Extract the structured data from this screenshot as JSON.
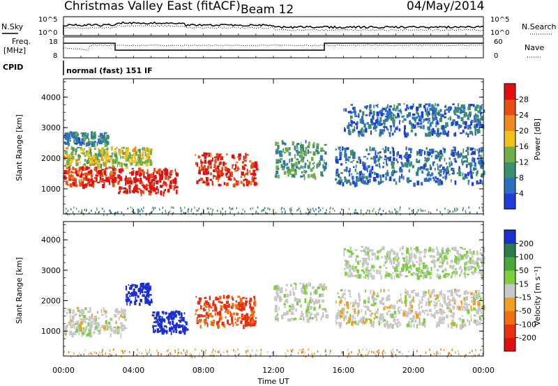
{
  "header": {
    "title": "Christmas Valley East (fitACF)",
    "beam": "Beam 12",
    "date": "04/May/2014"
  },
  "strips": {
    "nsky_label": "N.Sky",
    "nsearch_label": "N.Search",
    "nsky_ticks": [
      "10^5",
      "10^0"
    ],
    "nsearch_ticks": [
      "10^5",
      "10^0"
    ],
    "freq_label_1": "Freq.",
    "freq_label_2": "[MHz]",
    "freq_ticks": [
      "18",
      "8"
    ],
    "nave_label": "Nave",
    "nave_ticks": [
      "60",
      "0"
    ],
    "cpid_label": "CPID",
    "cpid_text": "normal (fast) 151 IF"
  },
  "axes": {
    "xlabel": "Time UT",
    "ylabel_top": "Slant Range [km]",
    "ylabel_bottom": "Slant Range [km]",
    "x_ticks": [
      "00:00",
      "04:00",
      "08:00",
      "12:00",
      "16:00",
      "20:00",
      "00:00"
    ],
    "y_ticks": [
      "1000",
      "2000",
      "3000",
      "4000"
    ]
  },
  "power_scale": {
    "label": "Power [dB]",
    "ticks": [
      "4",
      "8",
      "12",
      "16",
      "20",
      "24",
      "28"
    ],
    "colors": [
      "#1f3bd8",
      "#2f6fc0",
      "#3c8f6e",
      "#6fb04a",
      "#f2c21b",
      "#f08a1a",
      "#e84d14",
      "#e01010"
    ]
  },
  "velocity_scale": {
    "label": "Velocity [m s⁻¹]",
    "ticks": [
      "200",
      "100",
      "50",
      "15",
      "-15",
      "-50",
      "-100",
      "-200"
    ],
    "colors": [
      "#1a2fd0",
      "#2e7a4a",
      "#49a83c",
      "#7cd040",
      "#c8c8c8",
      "#f0a020",
      "#f07010",
      "#e83010",
      "#e01010"
    ]
  },
  "chart_data": [
    {
      "type": "heatmap",
      "title": "Power",
      "xlabel": "Time UT",
      "ylabel": "Slant Range [km]",
      "xlim": [
        0,
        24
      ],
      "ylim": [
        180,
        4600
      ],
      "colorbar_range": [
        0,
        30
      ],
      "bands": [
        {
          "t0": 0.0,
          "t1": 3.0,
          "r0": 1150,
          "r1": 1750,
          "level": 27
        },
        {
          "t0": 0.0,
          "t1": 5.0,
          "r0": 1800,
          "r1": 2400,
          "level": 15
        },
        {
          "t0": 0.0,
          "t1": 2.5,
          "r0": 2500,
          "r1": 2900,
          "level": 8
        },
        {
          "t0": 3.0,
          "t1": 6.5,
          "r0": 900,
          "r1": 1700,
          "level": 28
        },
        {
          "t0": 7.5,
          "t1": 11.0,
          "r0": 1150,
          "r1": 2200,
          "level": 27
        },
        {
          "t0": 12.0,
          "t1": 15.0,
          "r0": 1400,
          "r1": 2600,
          "level": 10
        },
        {
          "t0": 15.5,
          "t1": 24.0,
          "r0": 1200,
          "r1": 2400,
          "level": 6
        },
        {
          "t0": 16.0,
          "t1": 24.0,
          "r0": 2800,
          "r1": 3800,
          "level": 6
        }
      ]
    },
    {
      "type": "heatmap",
      "title": "Velocity",
      "xlabel": "Time UT",
      "ylabel": "Slant Range [km]",
      "xlim": [
        0,
        24
      ],
      "ylim": [
        180,
        4600
      ],
      "colorbar_range": [
        -200,
        200
      ],
      "bands": [
        {
          "t0": 0.0,
          "t1": 3.5,
          "r0": 900,
          "r1": 1800,
          "level": 0
        },
        {
          "t0": 3.5,
          "t1": 5.0,
          "r0": 1900,
          "r1": 2600,
          "level": 200
        },
        {
          "t0": 5.0,
          "t1": 7.0,
          "r0": 1000,
          "r1": 1700,
          "level": 220
        },
        {
          "t0": 7.5,
          "t1": 11.0,
          "r0": 1200,
          "r1": 2200,
          "level": -80
        },
        {
          "t0": 12.0,
          "t1": 15.0,
          "r0": 1400,
          "r1": 2600,
          "level": 5
        },
        {
          "t0": 15.5,
          "t1": 24.0,
          "r0": 1200,
          "r1": 2400,
          "level": 0
        },
        {
          "t0": 16.0,
          "t1": 24.0,
          "r0": 2800,
          "r1": 3800,
          "level": 10
        }
      ]
    }
  ]
}
